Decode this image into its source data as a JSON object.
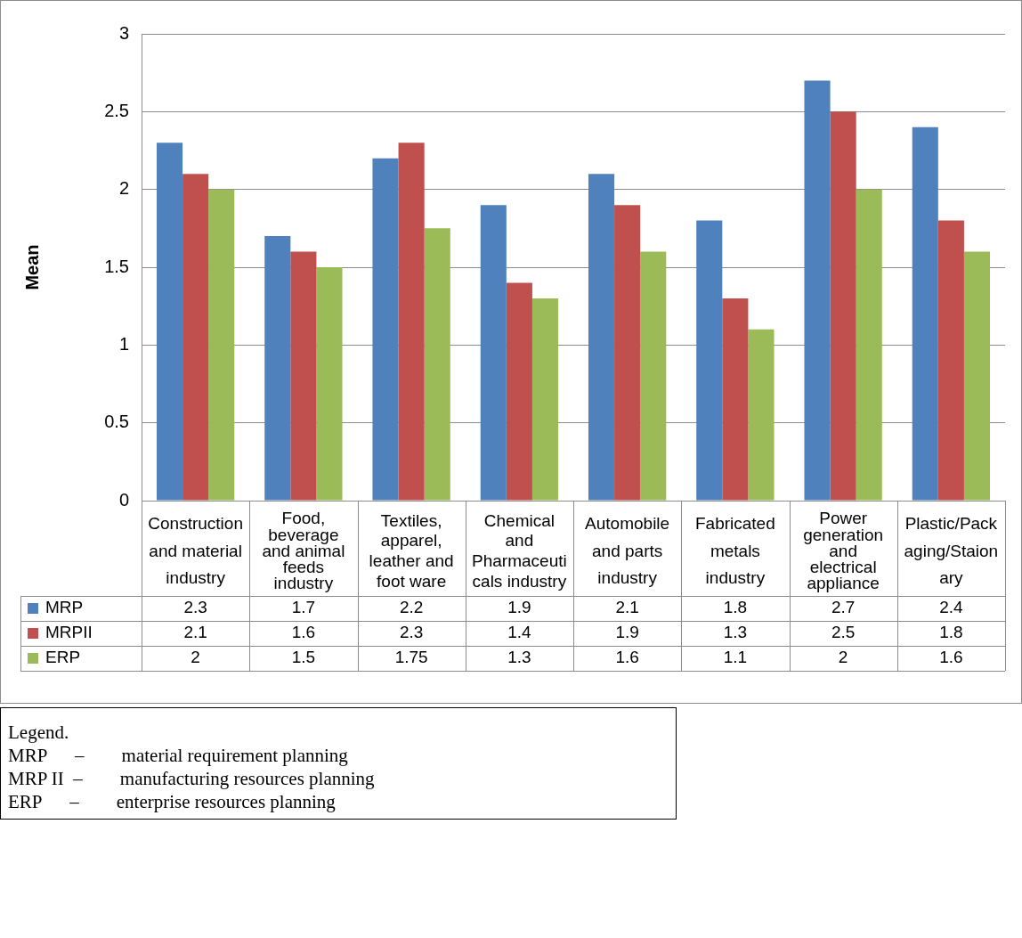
{
  "chart_data": {
    "type": "bar",
    "ylabel": "Mean",
    "categories": [
      "Construction and material industry",
      "Food, beverage and animal feeds industry",
      "Textiles, apparel, leather and foot ware",
      "Chemical and Pharmaceuticals industry",
      "Automobile and parts industry",
      "Fabricated metals industry",
      "Power generation and electrical appliance",
      "Plastic/Packaging/Staionary"
    ],
    "series": [
      {
        "name": "MRP",
        "color": "#4f81bd",
        "values": [
          2.3,
          1.7,
          2.2,
          1.9,
          2.1,
          1.8,
          2.7,
          2.4
        ]
      },
      {
        "name": "MRPII",
        "color": "#c0504d",
        "values": [
          2.1,
          1.6,
          2.3,
          1.4,
          1.9,
          1.3,
          2.5,
          1.8
        ]
      },
      {
        "name": "ERP",
        "color": "#9bbb59",
        "values": [
          2,
          1.5,
          1.75,
          1.3,
          1.6,
          1.1,
          2,
          1.6
        ]
      }
    ],
    "ylim": [
      0,
      3
    ],
    "yticks": [
      0,
      0.5,
      1,
      1.5,
      2,
      2.5,
      3
    ],
    "grid": "y",
    "legend": "bottom left",
    "data_labels": true,
    "annotations": [
      "Legend.",
      "MRP      –        material requirement planning",
      "MRP II  –        manufacturing resources planning",
      "ERP      –        enterprise resources planning"
    ]
  }
}
